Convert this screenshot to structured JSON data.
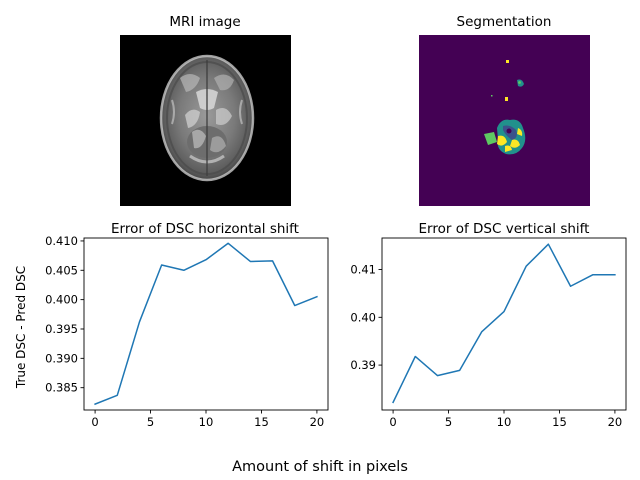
{
  "figure": {
    "supxlabel": "Amount of shift in pixels"
  },
  "images": [
    {
      "title": "MRI image",
      "description": "grayscale axial brain MRI slice"
    },
    {
      "title": "Segmentation",
      "description": "tumor segmentation mask (viridis colormap)",
      "colors": {
        "background": "#440154",
        "class_1": "#21918c",
        "class_2": "#3b528b",
        "class_3": "#5ec962",
        "class_4": "#fde725"
      }
    }
  ],
  "chart_data": [
    {
      "type": "line",
      "title": "Error of DSC horizontal shift",
      "xlabel": "",
      "ylabel": "True DSC - Pred DSC",
      "x": [
        0,
        2,
        4,
        6,
        8,
        10,
        12,
        14,
        16,
        18,
        20
      ],
      "series": [
        {
          "values": [
            0.3822,
            0.3837,
            0.3962,
            0.4059,
            0.405,
            0.4068,
            0.4096,
            0.4065,
            0.4066,
            0.399,
            0.4005
          ],
          "color": "#1f77b4"
        }
      ],
      "xlim": [
        -1,
        21
      ],
      "ylim": [
        0.3812,
        0.4105
      ],
      "xticks": [
        0,
        5,
        10,
        15,
        20
      ],
      "yticks": [
        0.385,
        0.39,
        0.395,
        0.4,
        0.405,
        0.41
      ],
      "ytick_labels": [
        "0.385",
        "0.390",
        "0.395",
        "0.400",
        "0.405",
        "0.410"
      ],
      "grid": false
    },
    {
      "type": "line",
      "title": "Error of DSC vertical shift",
      "xlabel": "",
      "ylabel": "",
      "x": [
        0,
        2,
        4,
        6,
        8,
        10,
        12,
        14,
        16,
        18,
        20
      ],
      "series": [
        {
          "values": [
            0.3822,
            0.3918,
            0.3878,
            0.3889,
            0.397,
            0.4012,
            0.4107,
            0.4153,
            0.4065,
            0.4089,
            0.4089
          ],
          "color": "#1f77b4"
        }
      ],
      "xlim": [
        -1,
        21
      ],
      "ylim": [
        0.3806,
        0.4166
      ],
      "xticks": [
        0,
        5,
        10,
        15,
        20
      ],
      "yticks": [
        0.39,
        0.4,
        0.41
      ],
      "ytick_labels": [
        "0.39",
        "0.40",
        "0.41"
      ],
      "grid": false
    }
  ]
}
